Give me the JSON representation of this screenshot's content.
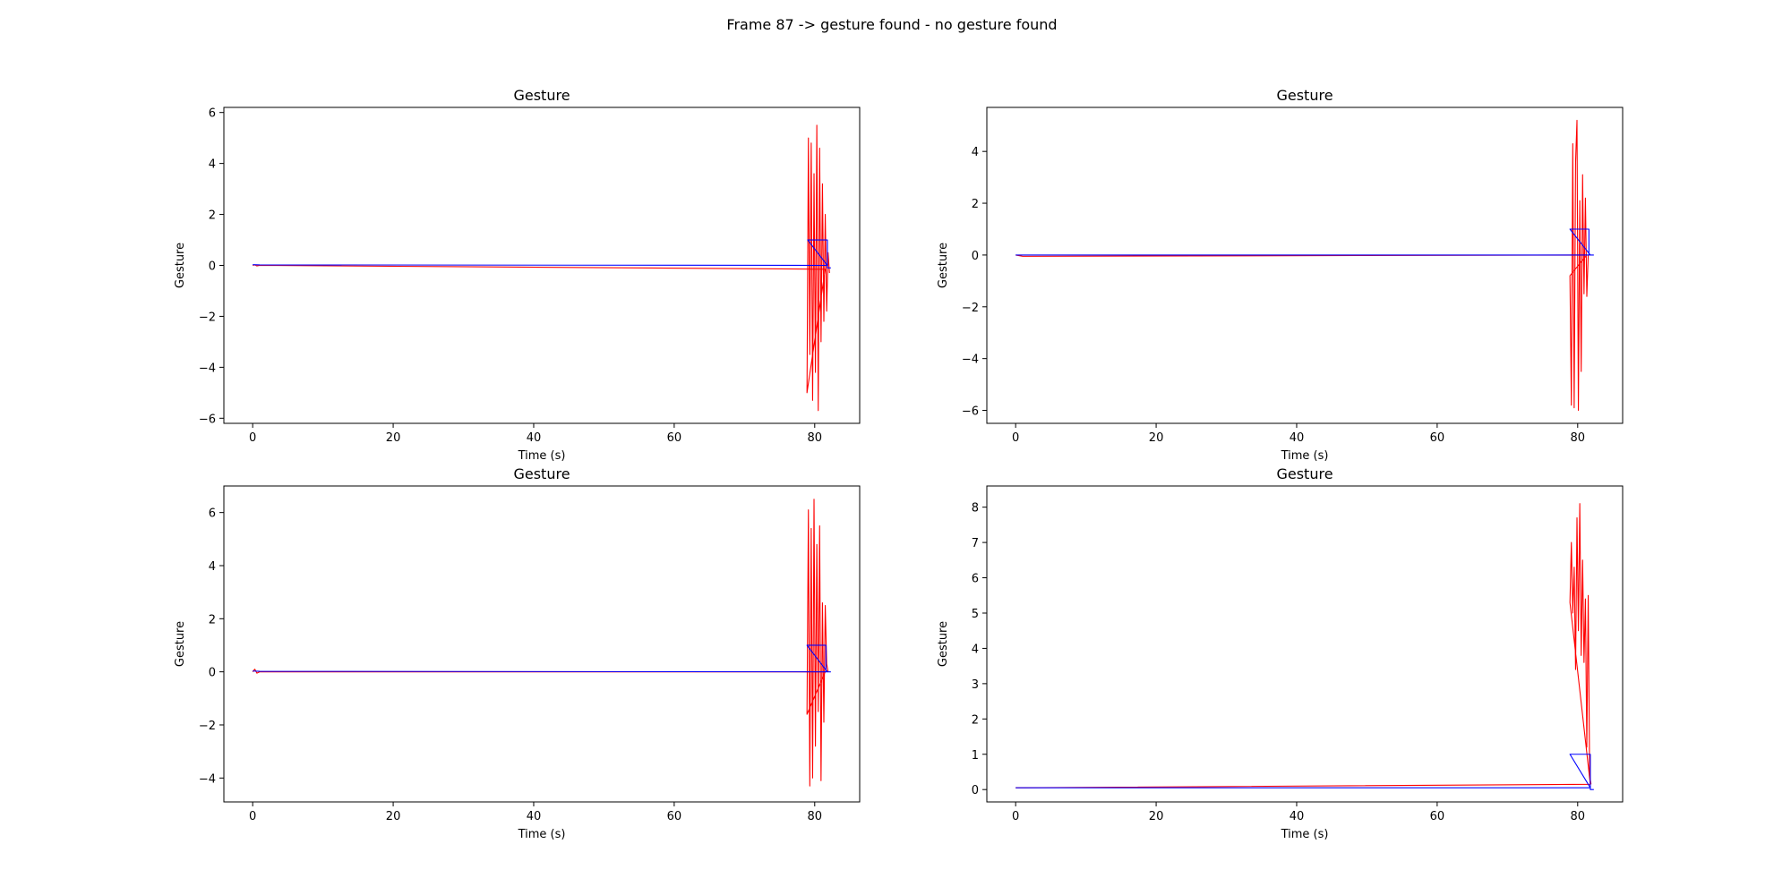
{
  "figure": {
    "suptitle": "Frame 87 -> gesture found - no gesture found",
    "colors": {
      "signal": "#ff0000",
      "gesture": "#0000ff"
    }
  },
  "chart_data": [
    {
      "type": "line",
      "title": "Gesture",
      "xlabel": "Time (s)",
      "ylabel": "Gesture",
      "xlim": [
        -4.1,
        86.4
      ],
      "ylim": [
        -6.2,
        6.2
      ],
      "xticks": [
        0,
        20,
        40,
        60,
        80
      ],
      "yticks": [
        -6,
        -4,
        -2,
        0,
        2,
        4,
        6
      ],
      "grid": false,
      "series": [
        {
          "color": "#ff0000",
          "x": [
            0,
            0.3,
            0.6,
            1.0,
            81.5,
            78.9,
            79.1,
            79.3,
            79.5,
            79.7,
            79.9,
            80.1,
            80.3,
            80.5,
            80.7,
            80.9,
            81.1,
            81.3,
            81.5,
            81.7,
            81.9,
            82.1
          ],
          "y": [
            0.0,
            0.02,
            -0.02,
            0.0,
            -0.15,
            -5.0,
            5.0,
            -3.5,
            4.8,
            -5.3,
            3.6,
            -4.2,
            5.5,
            -5.7,
            4.6,
            -3.0,
            3.2,
            -2.2,
            2.0,
            -1.8,
            0.5,
            -0.3
          ]
        },
        {
          "color": "#0000ff",
          "x": [
            0,
            1.0,
            81.8,
            79.0,
            81.8,
            81.8,
            82.3
          ],
          "y": [
            0.03,
            0.02,
            0.0,
            1.0,
            1.0,
            -0.1,
            -0.1
          ]
        }
      ]
    },
    {
      "type": "line",
      "title": "Gesture",
      "xlabel": "Time (s)",
      "ylabel": "Gesture",
      "xlim": [
        -4.1,
        86.4
      ],
      "ylim": [
        -6.5,
        5.7
      ],
      "xticks": [
        0,
        20,
        40,
        60,
        80
      ],
      "yticks": [
        -6,
        -4,
        -2,
        0,
        2,
        4
      ],
      "grid": false,
      "series": [
        {
          "color": "#ff0000",
          "x": [
            0,
            1.0,
            81.3,
            78.9,
            79.1,
            79.3,
            79.5,
            79.7,
            79.9,
            80.1,
            80.3,
            80.5,
            80.7,
            80.9,
            81.1,
            81.3,
            81.5
          ],
          "y": [
            0.0,
            -0.05,
            0.0,
            -0.8,
            -5.8,
            4.3,
            -5.9,
            3.6,
            5.2,
            -6.0,
            2.1,
            -4.5,
            3.1,
            -1.5,
            2.2,
            -1.6,
            0.0
          ]
        },
        {
          "color": "#0000ff",
          "x": [
            0,
            1.0,
            81.8,
            78.9,
            81.6,
            81.6,
            82.3
          ],
          "y": [
            0.0,
            0.0,
            0.0,
            1.0,
            1.0,
            0.0,
            0.0
          ]
        }
      ]
    },
    {
      "type": "line",
      "title": "Gesture",
      "xlabel": "Time (s)",
      "ylabel": "Gesture",
      "xlim": [
        -4.1,
        86.4
      ],
      "ylim": [
        -4.9,
        7.0
      ],
      "xticks": [
        0,
        20,
        40,
        60,
        80
      ],
      "yticks": [
        -4,
        -2,
        0,
        2,
        4,
        6
      ],
      "grid": false,
      "series": [
        {
          "color": "#ff0000",
          "x": [
            0,
            0.3,
            0.6,
            1.0,
            81.5,
            78.9,
            79.1,
            79.3,
            79.5,
            79.7,
            79.9,
            80.1,
            80.3,
            80.5,
            80.7,
            80.9,
            81.1,
            81.3,
            81.5,
            81.7,
            81.9
          ],
          "y": [
            0.0,
            0.1,
            -0.05,
            0.0,
            0.0,
            -1.6,
            6.1,
            -4.3,
            5.4,
            -4.0,
            6.5,
            -2.8,
            4.8,
            -1.5,
            5.5,
            -4.1,
            2.6,
            -1.9,
            2.5,
            0.3,
            0.0
          ]
        },
        {
          "color": "#0000ff",
          "x": [
            0,
            1.0,
            81.8,
            78.9,
            81.6,
            81.6,
            82.3
          ],
          "y": [
            0.03,
            0.02,
            0.0,
            1.0,
            1.0,
            0.0,
            0.0
          ]
        }
      ]
    },
    {
      "type": "line",
      "title": "Gesture",
      "xlabel": "Time (s)",
      "ylabel": "Gesture",
      "xlim": [
        -4.1,
        86.4
      ],
      "ylim": [
        -0.35,
        8.6
      ],
      "xticks": [
        0,
        20,
        40,
        60,
        80
      ],
      "yticks": [
        0,
        1,
        2,
        3,
        4,
        5,
        6,
        7,
        8
      ],
      "grid": false,
      "series": [
        {
          "color": "#ff0000",
          "x": [
            0,
            1.0,
            81.8,
            78.9,
            79.1,
            79.3,
            79.5,
            79.7,
            79.9,
            80.1,
            80.3,
            80.5,
            80.7,
            80.9,
            81.1,
            81.3,
            81.5,
            81.7,
            81.9
          ],
          "y": [
            0.05,
            0.05,
            0.15,
            5.3,
            7.0,
            5.0,
            6.3,
            3.4,
            7.7,
            4.5,
            8.1,
            3.8,
            6.5,
            3.6,
            5.4,
            1.2,
            5.5,
            0.4,
            0.15
          ]
        },
        {
          "color": "#0000ff",
          "x": [
            0,
            1.0,
            81.8,
            78.9,
            81.8,
            81.8,
            82.3
          ],
          "y": [
            0.05,
            0.05,
            0.05,
            1.0,
            1.0,
            0.0,
            0.0
          ]
        }
      ]
    }
  ]
}
